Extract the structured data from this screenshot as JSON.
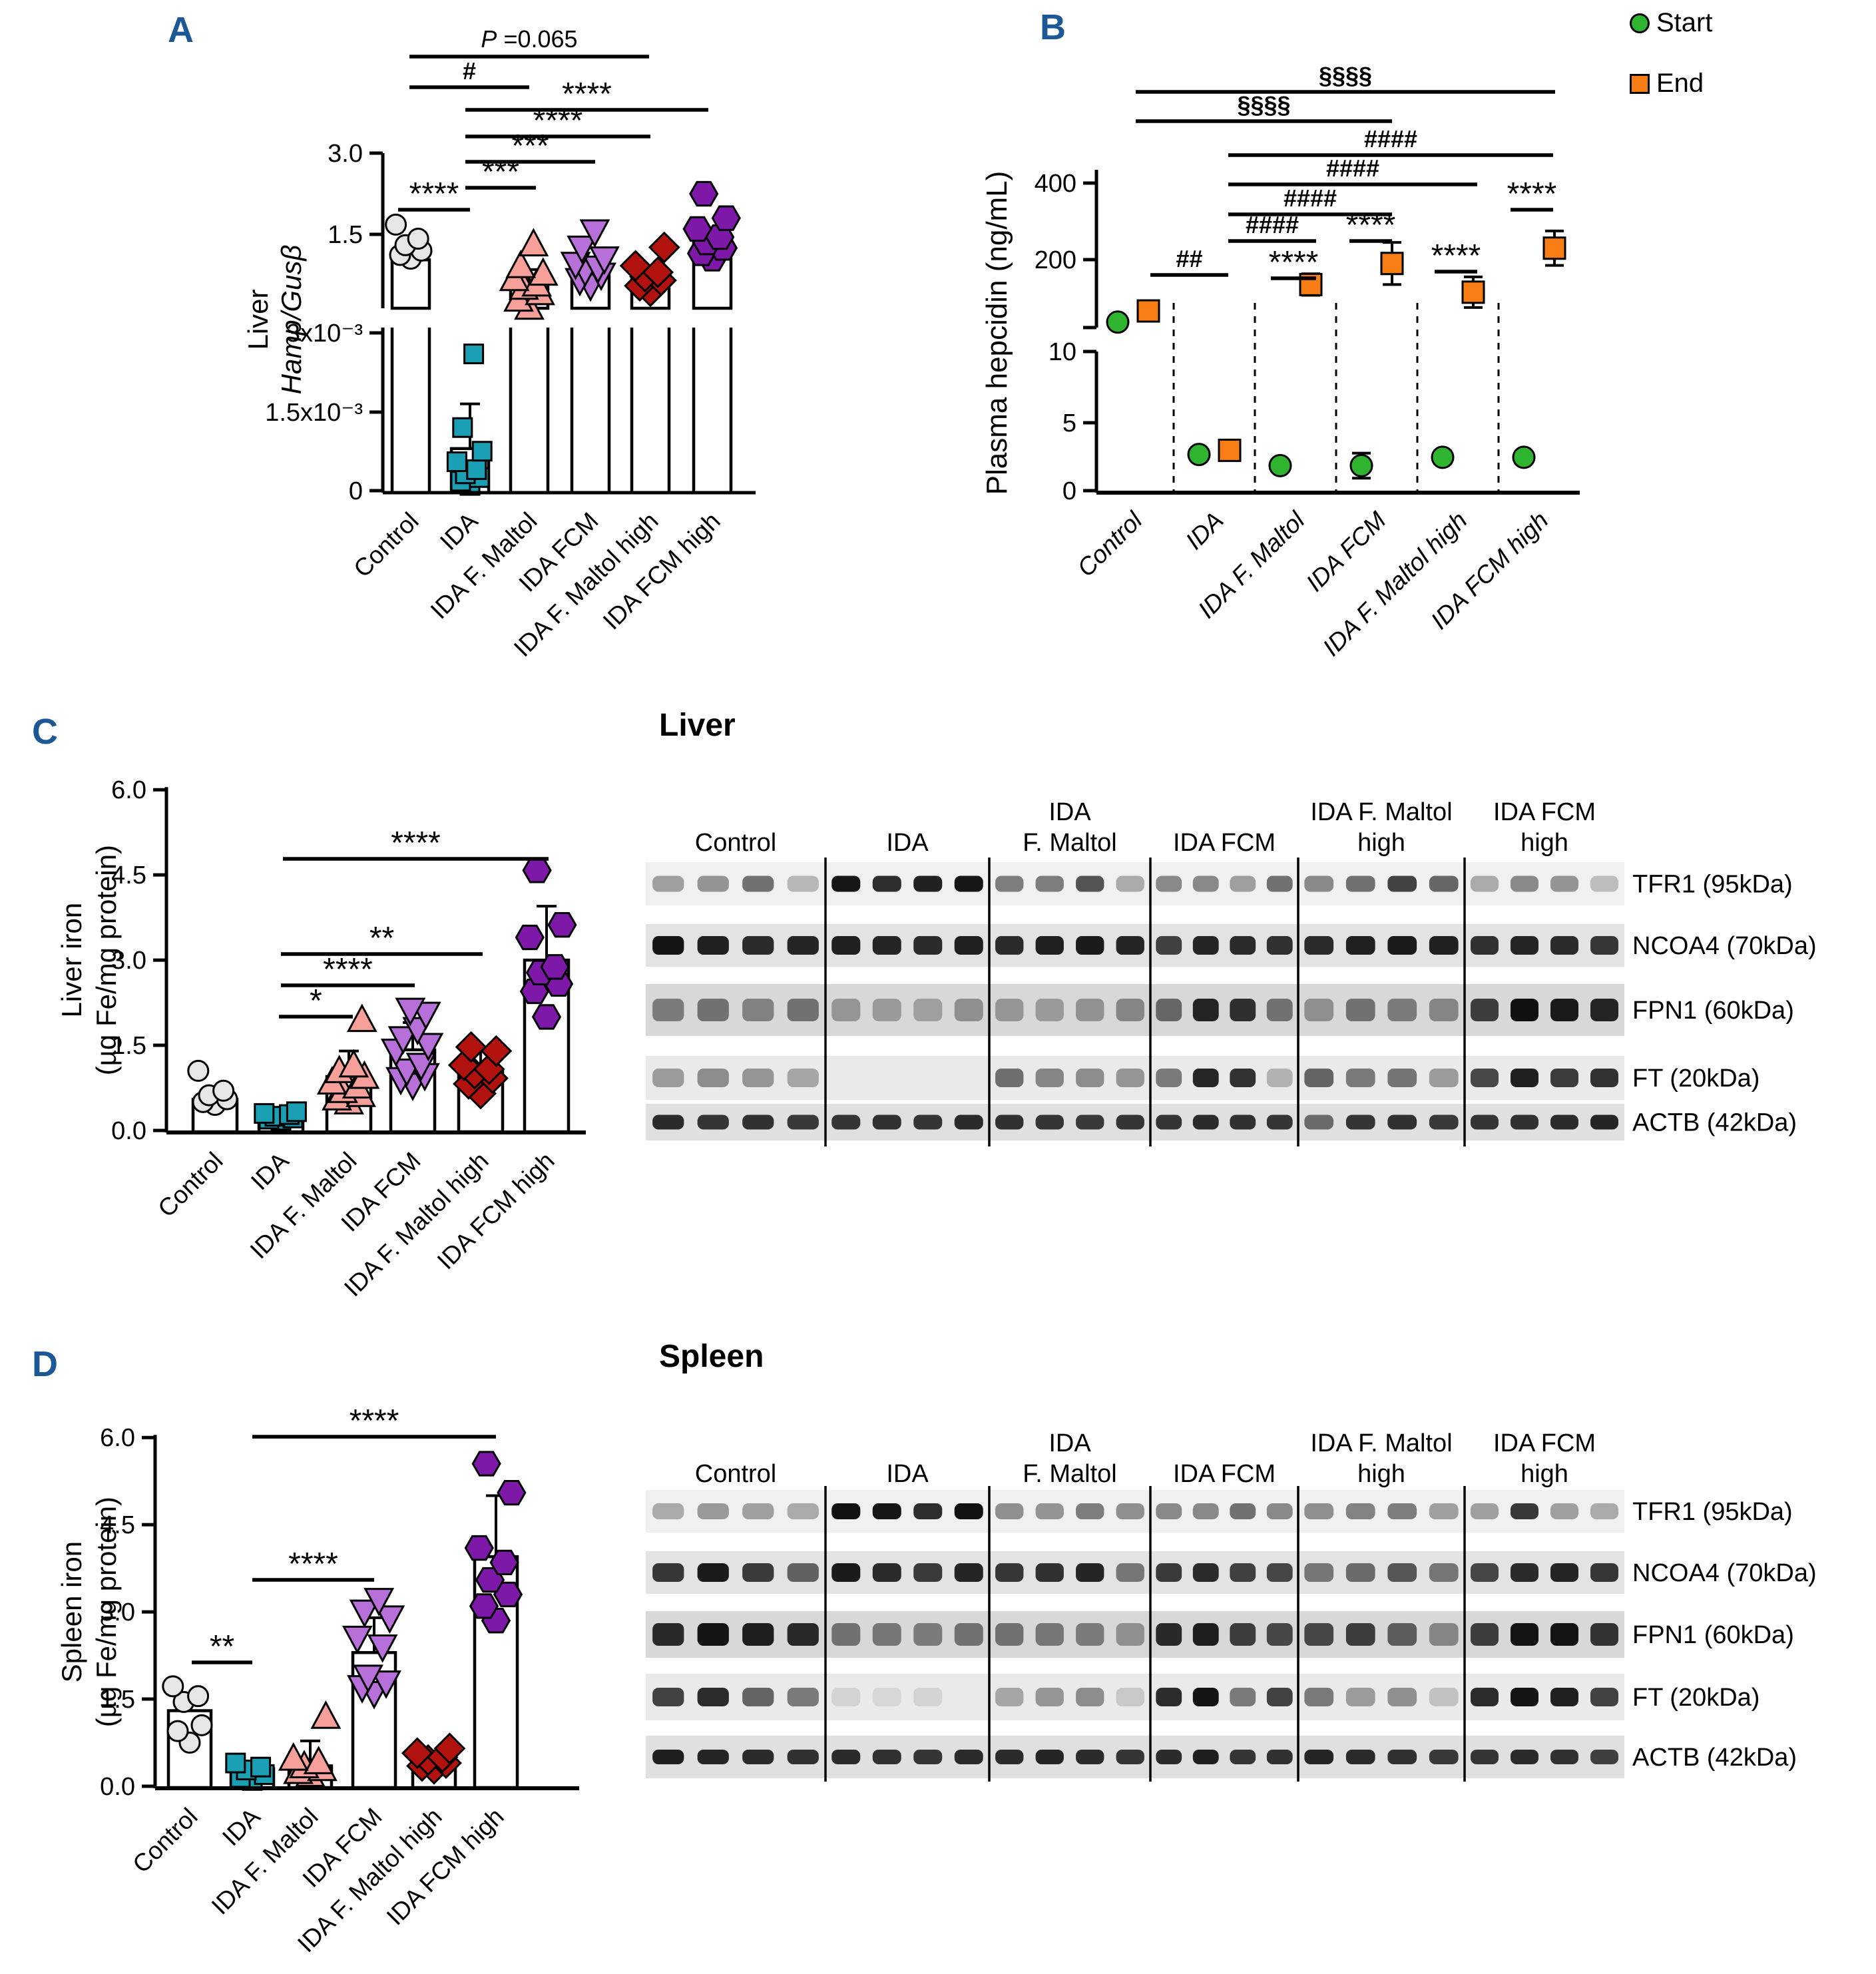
{
  "colors": {
    "panel_letter": "#1c5796",
    "control": "#e6e6e6",
    "ida": "#1a9fb5",
    "ida_f_maltol": "#f7a09a",
    "ida_fcm": "#b76fd9",
    "ida_f_maltol_high": "#b2120e",
    "ida_fcm_high": "#7d18a8",
    "start": "#2eb42e",
    "end": "#f87d15"
  },
  "groups": [
    {
      "name": "Control",
      "marker": "circle",
      "color": "#e6e6e6"
    },
    {
      "name": "IDA",
      "marker": "square",
      "color": "#1a9fb5"
    },
    {
      "name": "IDA F. Maltol",
      "marker": "triangle-up",
      "color": "#f7a09a"
    },
    {
      "name": "IDA FCM",
      "marker": "triangle-down",
      "color": "#b76fd9"
    },
    {
      "name": "IDA F. Maltol high",
      "marker": "diamond",
      "color": "#b2120e"
    },
    {
      "name": "IDA FCM high",
      "marker": "hexagon",
      "color": "#7d18a8"
    }
  ],
  "panels": {
    "a": {
      "letter": "A"
    },
    "b": {
      "letter": "B"
    },
    "c": {
      "letter": "C"
    },
    "d": {
      "letter": "D"
    }
  },
  "legend": {
    "start": {
      "label": "Start",
      "color": "#2eb42e"
    },
    "end": {
      "label": "End",
      "color": "#f87d15"
    }
  },
  "blots": {
    "liver": {
      "title": "Liver",
      "columns": [
        {
          "line1": "",
          "line2": "Control"
        },
        {
          "line1": "",
          "line2": "IDA"
        },
        {
          "line1": "IDA",
          "line2": "F. Maltol"
        },
        {
          "line1": "",
          "line2": "IDA FCM"
        },
        {
          "line1": "IDA F. Maltol",
          "line2": "high"
        },
        {
          "line1": "IDA FCM",
          "line2": "high"
        }
      ],
      "rows": [
        "TFR1 (95kDa)",
        "NCOA4 (70kDa)",
        "FPN1 (60kDa)",
        "FT (20kDa)",
        "ACTB (42kDa)"
      ],
      "band_intensities": [
        [
          [
            0.35,
            0.4,
            0.55,
            0.25
          ],
          [
            0.95,
            0.85,
            0.9,
            0.95
          ],
          [
            0.5,
            0.5,
            0.68,
            0.3
          ],
          [
            0.45,
            0.45,
            0.35,
            0.55
          ],
          [
            0.45,
            0.55,
            0.75,
            0.6
          ],
          [
            0.3,
            0.45,
            0.4,
            0.22
          ]
        ],
        [
          [
            0.95,
            0.9,
            0.85,
            0.88
          ],
          [
            0.9,
            0.88,
            0.85,
            0.9
          ],
          [
            0.85,
            0.9,
            0.92,
            0.88
          ],
          [
            0.75,
            0.88,
            0.85,
            0.82
          ],
          [
            0.85,
            0.9,
            0.92,
            0.9
          ],
          [
            0.82,
            0.88,
            0.85,
            0.8
          ]
        ],
        [
          [
            0.45,
            0.5,
            0.42,
            0.5
          ],
          [
            0.32,
            0.3,
            0.28,
            0.35
          ],
          [
            0.32,
            0.3,
            0.34,
            0.4
          ],
          [
            0.55,
            0.88,
            0.82,
            0.5
          ],
          [
            0.35,
            0.5,
            0.45,
            0.4
          ],
          [
            0.75,
            0.97,
            0.92,
            0.88
          ]
        ],
        [
          [
            0.35,
            0.42,
            0.38,
            0.3
          ],
          [
            0.05,
            0.05,
            0.05,
            0.05
          ],
          [
            0.55,
            0.45,
            0.42,
            0.38
          ],
          [
            0.5,
            0.88,
            0.82,
            0.25
          ],
          [
            0.6,
            0.5,
            0.52,
            0.35
          ],
          [
            0.72,
            0.9,
            0.78,
            0.82
          ]
        ],
        [
          [
            0.85,
            0.8,
            0.82,
            0.78
          ],
          [
            0.8,
            0.82,
            0.8,
            0.85
          ],
          [
            0.82,
            0.8,
            0.78,
            0.8
          ],
          [
            0.8,
            0.85,
            0.82,
            0.8
          ],
          [
            0.55,
            0.8,
            0.82,
            0.78
          ],
          [
            0.8,
            0.82,
            0.85,
            0.88
          ]
        ]
      ]
    },
    "spleen": {
      "title": "Spleen",
      "columns": [
        {
          "line1": "",
          "line2": "Control"
        },
        {
          "line1": "",
          "line2": "IDA"
        },
        {
          "line1": "IDA",
          "line2": "F. Maltol"
        },
        {
          "line1": "",
          "line2": "IDA FCM"
        },
        {
          "line1": "IDA F. Maltol",
          "line2": "high"
        },
        {
          "line1": "IDA FCM",
          "line2": "high"
        }
      ],
      "rows": [
        "TFR1 (95kDa)",
        "NCOA4 (70kDa)",
        "FPN1 (60kDa)",
        "FT (20kDa)",
        "ACTB (42kDa)"
      ],
      "band_intensities": [
        [
          [
            0.3,
            0.38,
            0.35,
            0.3
          ],
          [
            0.97,
            0.95,
            0.85,
            0.97
          ],
          [
            0.42,
            0.4,
            0.5,
            0.42
          ],
          [
            0.45,
            0.45,
            0.55,
            0.45
          ],
          [
            0.42,
            0.48,
            0.5,
            0.35
          ],
          [
            0.35,
            0.8,
            0.35,
            0.3
          ]
        ],
        [
          [
            0.8,
            0.92,
            0.78,
            0.6
          ],
          [
            0.92,
            0.85,
            0.78,
            0.88
          ],
          [
            0.8,
            0.82,
            0.88,
            0.5
          ],
          [
            0.78,
            0.85,
            0.75,
            0.72
          ],
          [
            0.5,
            0.55,
            0.65,
            0.5
          ],
          [
            0.72,
            0.85,
            0.88,
            0.8
          ]
        ],
        [
          [
            0.85,
            0.95,
            0.9,
            0.85
          ],
          [
            0.5,
            0.48,
            0.45,
            0.5
          ],
          [
            0.5,
            0.48,
            0.45,
            0.35
          ],
          [
            0.85,
            0.9,
            0.75,
            0.7
          ],
          [
            0.7,
            0.75,
            0.6,
            0.4
          ],
          [
            0.75,
            0.95,
            0.95,
            0.8
          ]
        ],
        [
          [
            0.75,
            0.85,
            0.6,
            0.5
          ],
          [
            0.1,
            0.08,
            0.1,
            0.06
          ],
          [
            0.3,
            0.38,
            0.42,
            0.15
          ],
          [
            0.85,
            0.95,
            0.5,
            0.75
          ],
          [
            0.5,
            0.35,
            0.4,
            0.18
          ],
          [
            0.85,
            0.95,
            0.9,
            0.75
          ]
        ],
        [
          [
            0.9,
            0.88,
            0.85,
            0.82
          ],
          [
            0.85,
            0.82,
            0.8,
            0.85
          ],
          [
            0.85,
            0.88,
            0.85,
            0.8
          ],
          [
            0.85,
            0.9,
            0.8,
            0.82
          ],
          [
            0.88,
            0.85,
            0.82,
            0.78
          ],
          [
            0.8,
            0.85,
            0.82,
            0.75
          ]
        ]
      ]
    }
  },
  "chart_data": [
    {
      "id": "A",
      "type": "scatter-bar",
      "ylabel_line1": "Liver",
      "ylabel_line2": "Hamp/Gusβ",
      "axis": "broken",
      "upper_axis": {
        "ticks": [
          "1.5",
          "3.0"
        ],
        "tick_values": [
          1.5,
          3.0
        ],
        "range": [
          0,
          3.0
        ]
      },
      "lower_axis": {
        "ticks": [
          "0",
          "1.5x10⁻³",
          "3x10⁻³"
        ],
        "tick_values_x10_3": [
          0,
          1.5,
          3.0
        ]
      },
      "categories": [
        "Control",
        "IDA",
        "IDA F. Maltol",
        "IDA FCM",
        "IDA F. Maltol high",
        "IDA FCM high"
      ],
      "bars": [
        1.03,
        null,
        0.62,
        0.81,
        0.69,
        1.37
      ],
      "errors_top": [
        null,
        null,
        0.85,
        0.95,
        0.8,
        1.55
      ],
      "points": [
        [
          1.05,
          1.12,
          1.2,
          1.3,
          1.42,
          1.68
        ],
        [],
        [
          0.15,
          0.3,
          0.42,
          0.52,
          0.58,
          0.68,
          0.78,
          0.92,
          1.32
        ],
        [
          0.55,
          0.65,
          0.75,
          0.82,
          0.88,
          0.95,
          1.05,
          1.25,
          1.55
        ],
        [
          0.45,
          0.55,
          0.65,
          0.72,
          0.8,
          0.92,
          1.26
        ],
        [
          1.05,
          1.15,
          1.25,
          1.35,
          1.45,
          1.6,
          1.8,
          2.25
        ]
      ],
      "ida_lower_x10_3": {
        "points": [
          0.1,
          0.18,
          0.25,
          0.32,
          0.4,
          0.55,
          0.75,
          1.2,
          2.6
        ],
        "bar": 0.8,
        "err": 1.65
      },
      "significance": [
        {
          "label": "P =0.065",
          "from": 0,
          "to": 4
        },
        {
          "label": "#",
          "from": 0,
          "to": 2
        },
        {
          "label": "****",
          "from": 1,
          "to": 5
        },
        {
          "label": "****",
          "from": 1,
          "to": 4
        },
        {
          "label": "***",
          "from": 1,
          "to": 3
        },
        {
          "label": "***",
          "from": 1,
          "to": 2
        },
        {
          "label": "****",
          "from": 0,
          "to": 1
        }
      ]
    },
    {
      "id": "B",
      "type": "scatter",
      "ylabel": "Plasma hepcidin (ng/mL)",
      "axis": "broken",
      "upper_ticks": [
        "200",
        "400"
      ],
      "upper_tick_values": [
        200,
        400
      ],
      "lower_ticks": [
        "0",
        "5",
        "10"
      ],
      "lower_tick_values": [
        0,
        5,
        10
      ],
      "categories": [
        "Control",
        "IDA",
        "IDA F. Maltol",
        "IDA FCM",
        "IDA F. Maltol high",
        "IDA FCM high"
      ],
      "series": [
        {
          "name": "Start",
          "marker": "circle",
          "color": "#2eb42e",
          "values": [
            37,
            2.6,
            1.8,
            1.8,
            2.4,
            2.4
          ],
          "errors": [
            null,
            0.4,
            0.35,
            0.9,
            0.45,
            0.3
          ]
        },
        {
          "name": "End",
          "marker": "square",
          "color": "#f87d15",
          "values": [
            66,
            2.9,
            135,
            190,
            115,
            230
          ],
          "errors": [
            null,
            null,
            28,
            55,
            40,
            45
          ]
        }
      ],
      "significance_between": [
        {
          "label": "§§§§",
          "from": 0,
          "to": 5
        },
        {
          "label": "§§§§",
          "from": 0,
          "to": 3
        },
        {
          "label": "####",
          "from": 1,
          "to": 5
        },
        {
          "label": "####",
          "from": 1,
          "to": 4
        },
        {
          "label": "####",
          "from": 1,
          "to": 3
        },
        {
          "label": "####",
          "from": 1,
          "to": 2
        },
        {
          "label": "##",
          "from": 0,
          "to": 1
        }
      ],
      "significance_within": [
        {
          "label": "****",
          "group": 2
        },
        {
          "label": "****",
          "group": 3
        },
        {
          "label": "****",
          "group": 4
        },
        {
          "label": "****",
          "group": 5
        }
      ]
    },
    {
      "id": "C",
      "type": "scatter-bar",
      "ylabel_line1": "Liver iron",
      "ylabel_line2": "(µg Fe/mg protein)",
      "yticks": [
        "0.0",
        "1.5",
        "3.0",
        "4.5",
        "6.0"
      ],
      "ytick_values": [
        0.0,
        1.5,
        3.0,
        4.5,
        6.0
      ],
      "ylim": [
        0,
        6.0
      ],
      "categories": [
        "Control",
        "IDA",
        "IDA F. Maltol",
        "IDA FCM",
        "IDA F. Maltol high",
        "IDA FCM high"
      ],
      "bars": [
        0.55,
        0.25,
        0.95,
        1.42,
        1.05,
        3.0
      ],
      "errors_top": [
        null,
        null,
        1.4,
        1.9,
        1.45,
        3.95
      ],
      "points": [
        [
          0.45,
          0.5,
          0.55,
          0.62,
          0.7,
          1.05
        ],
        [
          0.18,
          0.2,
          0.22,
          0.25,
          0.28,
          0.3,
          0.33
        ],
        [
          0.5,
          0.57,
          0.63,
          0.7,
          0.78,
          0.85,
          0.95,
          1.05,
          1.15,
          1.95
        ],
        [
          0.8,
          0.9,
          0.97,
          1.05,
          1.15,
          1.4,
          1.5,
          1.62,
          1.78,
          2.05,
          2.12
        ],
        [
          0.65,
          0.82,
          0.92,
          1.0,
          1.08,
          1.15,
          1.4,
          1.47
        ],
        [
          2.0,
          2.45,
          2.58,
          2.78,
          2.88,
          3.4,
          3.62,
          4.58
        ]
      ],
      "significance": [
        {
          "label": "****",
          "from": 1,
          "to": 5
        },
        {
          "label": "**",
          "from": 1,
          "to": 4
        },
        {
          "label": "****",
          "from": 1,
          "to": 3
        },
        {
          "label": "*",
          "from": 1,
          "to": 2
        }
      ]
    },
    {
      "id": "D",
      "type": "scatter-bar",
      "ylabel_line1": "Spleen iron",
      "ylabel_line2": "(µg Fe/mg protein)",
      "yticks": [
        "0.0",
        "1.5",
        "3.0",
        "4.5",
        "6.0"
      ],
      "ytick_values": [
        0.0,
        1.5,
        3.0,
        4.5,
        6.0
      ],
      "ylim": [
        0,
        6.0
      ],
      "categories": [
        "Control",
        "IDA",
        "IDA F. Maltol",
        "IDA FCM",
        "IDA F. Maltol high",
        "IDA FCM high"
      ],
      "bars": [
        1.3,
        0.3,
        0.35,
        2.3,
        0.42,
        3.95
      ],
      "errors_top": [
        null,
        null,
        0.78,
        2.9,
        null,
        5.0
      ],
      "points": [
        [
          0.75,
          0.95,
          1.05,
          1.45,
          1.55,
          1.72
        ],
        [
          0.1,
          0.15,
          0.2,
          0.28,
          0.33,
          0.4
        ],
        [
          0.2,
          0.25,
          0.3,
          0.35,
          0.42,
          0.48,
          1.2
        ],
        [
          1.6,
          1.7,
          1.78,
          1.88,
          2.4,
          2.55,
          2.9,
          3.0,
          3.2
        ],
        [
          0.3,
          0.35,
          0.4,
          0.45,
          0.5,
          0.57,
          0.65
        ],
        [
          2.85,
          3.1,
          3.3,
          3.55,
          3.85,
          4.1,
          5.05,
          5.55
        ]
      ],
      "significance": [
        {
          "label": "****",
          "from": 1,
          "to": 5
        },
        {
          "label": "****",
          "from": 1,
          "to": 3
        },
        {
          "label": "**",
          "from": 0,
          "to": 1
        }
      ]
    }
  ]
}
